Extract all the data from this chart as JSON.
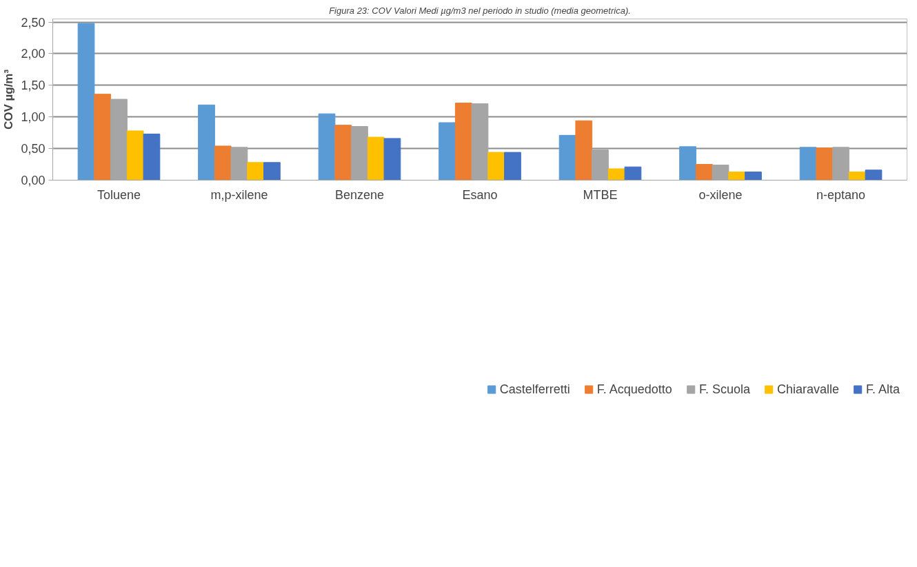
{
  "chart_data": {
    "type": "bar",
    "title": "Figura 23: COV Valori Medi µg/m3 nel periodo in studio (media geometrica).",
    "ylabel": "COV µg/m³",
    "categories": [
      "Toluene",
      "m,p-xilene",
      "Benzene",
      "Esano",
      "MTBE",
      "o-xilene",
      "n-eptano"
    ],
    "series": [
      {
        "name": "Castelferretti",
        "color": "#5b9bd5",
        "values": [
          2.48,
          1.19,
          1.05,
          0.91,
          0.71,
          0.53,
          0.52
        ]
      },
      {
        "name": "F. Acquedotto",
        "color": "#ed7d31",
        "values": [
          1.36,
          0.54,
          0.87,
          1.22,
          0.94,
          0.25,
          0.51
        ]
      },
      {
        "name": "F. Scuola",
        "color": "#a5a5a5",
        "values": [
          1.28,
          0.52,
          0.85,
          1.21,
          0.48,
          0.24,
          0.52
        ]
      },
      {
        "name": "Chiaravalle",
        "color": "#ffc000",
        "values": [
          0.78,
          0.28,
          0.68,
          0.44,
          0.18,
          0.13,
          0.13
        ]
      },
      {
        "name": "F. Alta",
        "color": "#4472c4",
        "values": [
          0.73,
          0.28,
          0.66,
          0.44,
          0.21,
          0.13,
          0.16
        ]
      }
    ],
    "ylim": [
      0,
      2.5
    ],
    "yticks": [
      {
        "value": 0,
        "label": "0,00"
      },
      {
        "value": 0.5,
        "label": "0,50"
      },
      {
        "value": 1,
        "label": "1,00"
      },
      {
        "value": 1.5,
        "label": "1,50"
      },
      {
        "value": 2,
        "label": "2,00"
      },
      {
        "value": 2.5,
        "label": "2,50"
      }
    ],
    "grid": "y",
    "legend": "bottom"
  }
}
